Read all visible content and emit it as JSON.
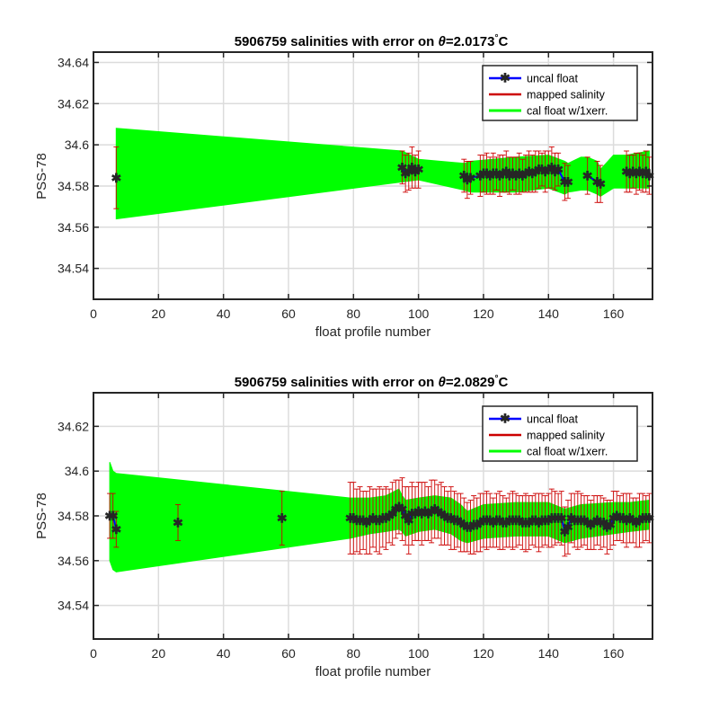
{
  "colors": {
    "uncal": "#0000ff",
    "mapped": "#cc0000",
    "cal": "#00ff00"
  },
  "chart_data": [
    {
      "type": "line",
      "title_prefix": "5906759 salinities with error on ",
      "title_theta": "θ",
      "title_value": "=2.0173",
      "title_deg": "°",
      "title_unit": "C",
      "xlabel": "float profile number",
      "ylabel": "PSS-78",
      "xlim": [
        0,
        172
      ],
      "ylim": [
        34.525,
        34.645
      ],
      "xticks": [
        0,
        20,
        40,
        60,
        80,
        100,
        120,
        140,
        160
      ],
      "yticks": [
        34.54,
        34.56,
        34.58,
        34.6,
        34.62,
        34.64
      ],
      "ytick_labels": [
        "34.54",
        "34.56",
        "34.58",
        "34.6",
        "34.62",
        "34.64"
      ],
      "grid": true,
      "legend": [
        "uncal float",
        "mapped salinity",
        "cal float w/1xerr."
      ],
      "legend_location": "top-right",
      "x": [
        7,
        95,
        96,
        97,
        98,
        99,
        100,
        114,
        115,
        116,
        119,
        120,
        121,
        122,
        123,
        124,
        125,
        126,
        127,
        128,
        129,
        130,
        131,
        132,
        133,
        134,
        135,
        136,
        137,
        138,
        139,
        140,
        141,
        142,
        143,
        145,
        146,
        152,
        155,
        156,
        164,
        165,
        166,
        167,
        168,
        169,
        170,
        171
      ],
      "uncal": [
        34.584,
        34.589,
        34.586,
        34.587,
        34.589,
        34.587,
        34.588,
        34.585,
        34.583,
        34.584,
        34.585,
        34.586,
        34.586,
        34.585,
        34.586,
        34.586,
        34.585,
        34.586,
        34.587,
        34.585,
        34.586,
        34.585,
        34.586,
        34.585,
        34.586,
        34.587,
        34.586,
        34.587,
        34.588,
        34.588,
        34.587,
        34.588,
        34.589,
        34.587,
        34.588,
        34.582,
        34.582,
        34.585,
        34.582,
        34.581,
        34.587,
        34.586,
        34.587,
        34.586,
        34.587,
        34.586,
        34.587,
        34.585
      ],
      "err": [
        0.015,
        0.008,
        0.009,
        0.009,
        0.01,
        0.008,
        0.009,
        0.008,
        0.009,
        0.008,
        0.01,
        0.009,
        0.01,
        0.009,
        0.01,
        0.008,
        0.01,
        0.009,
        0.01,
        0.009,
        0.008,
        0.009,
        0.01,
        0.008,
        0.009,
        0.01,
        0.009,
        0.01,
        0.009,
        0.008,
        0.01,
        0.009,
        0.01,
        0.009,
        0.008,
        0.009,
        0.008,
        0.009,
        0.01,
        0.009,
        0.01,
        0.009,
        0.008,
        0.01,
        0.009,
        0.009,
        0.01,
        0.009
      ],
      "band_x": [
        7,
        95,
        100,
        114,
        116,
        130,
        140,
        145,
        146,
        150,
        152,
        155,
        156,
        160,
        164,
        171
      ],
      "band_lower": [
        34.564,
        34.582,
        34.583,
        34.578,
        34.577,
        34.577,
        34.579,
        34.576,
        34.577,
        34.578,
        34.578,
        34.576,
        34.575,
        34.579,
        34.579,
        34.579
      ],
      "band_upper": [
        34.608,
        34.597,
        34.593,
        34.591,
        34.592,
        34.594,
        34.595,
        34.592,
        34.591,
        34.594,
        34.594,
        34.592,
        34.588,
        34.595,
        34.595,
        34.597
      ]
    },
    {
      "type": "line",
      "title_prefix": "5906759 salinities with error on ",
      "title_theta": "θ",
      "title_value": "=2.0829",
      "title_deg": "°",
      "title_unit": "C",
      "xlabel": "float profile number",
      "ylabel": "PSS-78",
      "xlim": [
        0,
        172
      ],
      "ylim": [
        34.525,
        34.635
      ],
      "xticks": [
        0,
        20,
        40,
        60,
        80,
        100,
        120,
        140,
        160
      ],
      "yticks": [
        34.54,
        34.56,
        34.58,
        34.6,
        34.62
      ],
      "ytick_labels": [
        "34.54",
        "34.56",
        "34.58",
        "34.6",
        "34.62"
      ],
      "grid": true,
      "legend": [
        "uncal float",
        "mapped salinity",
        "cal float w/1xerr."
      ],
      "legend_location": "top-right",
      "x": [
        5,
        6,
        7,
        26,
        58,
        79,
        80,
        81,
        82,
        83,
        84,
        85,
        86,
        87,
        88,
        89,
        90,
        91,
        92,
        93,
        94,
        95,
        96,
        97,
        98,
        99,
        100,
        101,
        102,
        103,
        104,
        105,
        106,
        107,
        108,
        109,
        110,
        111,
        112,
        113,
        114,
        115,
        116,
        117,
        118,
        119,
        120,
        121,
        122,
        123,
        124,
        125,
        126,
        127,
        128,
        129,
        130,
        131,
        132,
        133,
        134,
        135,
        136,
        137,
        138,
        139,
        140,
        141,
        142,
        143,
        144,
        145,
        146,
        147,
        148,
        149,
        150,
        151,
        152,
        153,
        154,
        155,
        156,
        157,
        158,
        159,
        160,
        161,
        162,
        163,
        164,
        165,
        166,
        167,
        168,
        169,
        170,
        171
      ],
      "uncal": [
        34.58,
        34.58,
        34.574,
        34.577,
        34.579,
        34.579,
        34.579,
        34.578,
        34.578,
        34.578,
        34.577,
        34.578,
        34.579,
        34.578,
        34.578,
        34.579,
        34.579,
        34.58,
        34.581,
        34.583,
        34.584,
        34.583,
        34.58,
        34.578,
        34.581,
        34.581,
        34.582,
        34.581,
        34.582,
        34.581,
        34.582,
        34.583,
        34.582,
        34.581,
        34.58,
        34.579,
        34.579,
        34.578,
        34.578,
        34.577,
        34.576,
        34.575,
        34.575,
        34.576,
        34.576,
        34.577,
        34.578,
        34.578,
        34.578,
        34.577,
        34.578,
        34.578,
        34.577,
        34.577,
        34.578,
        34.578,
        34.578,
        34.578,
        34.577,
        34.577,
        34.577,
        34.578,
        34.578,
        34.577,
        34.578,
        34.578,
        34.578,
        34.579,
        34.579,
        34.579,
        34.579,
        34.573,
        34.575,
        34.579,
        34.578,
        34.578,
        34.578,
        34.578,
        34.577,
        34.576,
        34.577,
        34.578,
        34.577,
        34.577,
        34.575,
        34.576,
        34.579,
        34.58,
        34.579,
        34.579,
        34.578,
        34.579,
        34.578,
        34.577,
        34.578,
        34.579,
        34.579,
        34.579
      ],
      "err": [
        0.01,
        0.01,
        0.008,
        0.008,
        0.012,
        0.016,
        0.016,
        0.014,
        0.015,
        0.013,
        0.014,
        0.015,
        0.013,
        0.014,
        0.015,
        0.013,
        0.014,
        0.012,
        0.014,
        0.013,
        0.012,
        0.014,
        0.013,
        0.015,
        0.014,
        0.012,
        0.013,
        0.014,
        0.013,
        0.012,
        0.014,
        0.013,
        0.012,
        0.014,
        0.013,
        0.012,
        0.014,
        0.013,
        0.012,
        0.013,
        0.012,
        0.011,
        0.012,
        0.013,
        0.012,
        0.013,
        0.012,
        0.013,
        0.012,
        0.011,
        0.012,
        0.013,
        0.012,
        0.011,
        0.012,
        0.013,
        0.012,
        0.011,
        0.012,
        0.013,
        0.012,
        0.011,
        0.012,
        0.013,
        0.012,
        0.011,
        0.012,
        0.013,
        0.012,
        0.011,
        0.012,
        0.011,
        0.012,
        0.011,
        0.012,
        0.013,
        0.012,
        0.011,
        0.012,
        0.011,
        0.012,
        0.011,
        0.012,
        0.011,
        0.012,
        0.011,
        0.012,
        0.011,
        0.01,
        0.011,
        0.012,
        0.011,
        0.01,
        0.011,
        0.012,
        0.011,
        0.01,
        0.011
      ],
      "band_x": [
        5,
        6,
        7,
        79,
        85,
        90,
        94,
        95,
        96,
        100,
        105,
        110,
        113,
        115,
        120,
        130,
        140,
        145,
        150,
        160,
        165,
        171
      ],
      "band_lower": [
        34.56,
        34.556,
        34.555,
        34.57,
        34.572,
        34.573,
        34.574,
        34.573,
        34.571,
        34.573,
        34.574,
        34.572,
        34.569,
        34.568,
        34.57,
        34.571,
        34.571,
        34.568,
        34.57,
        34.572,
        34.573,
        34.574
      ],
      "band_upper": [
        34.604,
        34.6,
        34.599,
        34.588,
        34.588,
        34.589,
        34.592,
        34.589,
        34.587,
        34.588,
        34.589,
        34.588,
        34.585,
        34.582,
        34.585,
        34.586,
        34.586,
        34.583,
        34.585,
        34.586,
        34.586,
        34.587
      ]
    }
  ]
}
